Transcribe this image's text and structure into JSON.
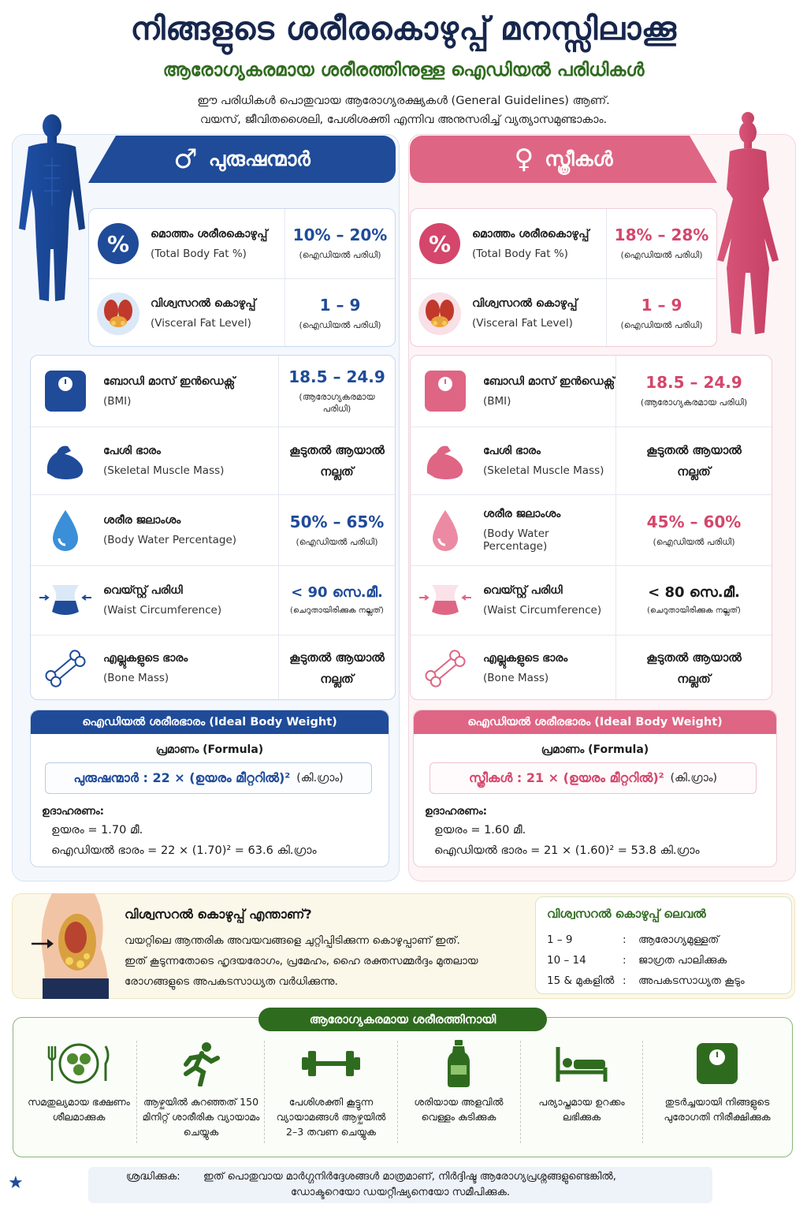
{
  "header": {
    "title": "നിങ്ങളുടെ ശരീരകൊഴുപ്പ് മനസ്സിലാക്കൂ",
    "subtitle": "ആരോഗ്യകരമായ ശരീരത്തിനുള്ള ഐഡിയൽ പരിധികൾ",
    "intro_line1": "ഈ പരിധികൾ പൊതുവായ ആരോഗ്യരക്ഷ്യകൾ (General Guidelines) ആണ്.",
    "intro_line2": "വയസ്, ജീവിതശൈലി, പേശിശക്തി എന്നിവ അനുസരിച്ച് വ്യത്യാസമുണ്ടാകാം."
  },
  "colors": {
    "male": "#1f4b99",
    "female": "#df6584",
    "green": "#2f6b1f"
  },
  "men": {
    "symbol": "♂",
    "title": "പുരുഷന്മാർ",
    "top_metrics": [
      {
        "icon": "percent-icon",
        "ml": "മൊത്തം ശരീരകൊഴുപ്പ്",
        "en": "(Total Body Fat %)",
        "value": "10% – 20%",
        "note": "(ഐഡിയൽ പരിധി)"
      },
      {
        "icon": "organs-icon",
        "ml": "വിശ്വസറൽ കൊഴുപ്പ്",
        "en": "(Visceral Fat Level)",
        "value": "1 – 9",
        "note": "(ഐഡിയൽ പരിധി)"
      }
    ],
    "metrics": [
      {
        "icon": "scale-icon",
        "ml": "ബോഡി മാസ് ഇൻഡെക്സ്",
        "en": "(BMI)",
        "value": "18.5 – 24.9",
        "note": "(ആരോഗ്യകരമായ പരിധി)"
      },
      {
        "icon": "muscle-icon",
        "ml": "പേശി ഭാരം",
        "en": "(Skeletal Muscle Mass)",
        "value": "കൂടുതൽ ആയാൽ നല്ലത്",
        "note": ""
      },
      {
        "icon": "water-drop-icon",
        "ml": "ശരീര ജലാംശം",
        "en": "(Body Water Percentage)",
        "value": "50% – 65%",
        "note": "(ഐഡിയൽ പരിധി)"
      },
      {
        "icon": "waist-icon",
        "ml": "വെയ്സ്റ്റ് പരിധി",
        "en": "(Waist Circumference)",
        "value": "< 90 സെ.മീ.",
        "note": "(ചെറുതായിരിക്കുക നല്ലത്)"
      },
      {
        "icon": "bone-icon",
        "ml": "എല്ലുകളുടെ ഭാരം",
        "en": "(Bone Mass)",
        "value": "കൂടുതൽ ആയാൽ നല്ലത്",
        "note": ""
      }
    ],
    "ideal": {
      "head": "ഐഡിയൽ ശരീരഭാരം (Ideal Body Weight)",
      "formula_label": "പ്രമാണം (Formula)",
      "formula": "പുരുഷന്മാർ : 22 × (ഉയരം മീറ്ററിൽ)²",
      "formula_unit": "(കി.ഗ്രാം)",
      "example_label": "ഉദാഹരണം:",
      "height": "ഉയരം = 1.70 മീ.",
      "calc": "ഐഡിയൽ ഭാരം = 22 × (1.70)² = 63.6 കി.ഗ്രാം"
    }
  },
  "women": {
    "symbol": "♀",
    "title": "സ്ത്രീകൾ",
    "top_metrics": [
      {
        "icon": "percent-icon",
        "ml": "മൊത്തം ശരീരകൊഴുപ്പ്",
        "en": "(Total Body Fat %)",
        "value": "18% – 28%",
        "note": "(ഐഡിയൽ പരിധി)"
      },
      {
        "icon": "organs-icon",
        "ml": "വിശ്വസറൽ കൊഴുപ്പ്",
        "en": "(Visceral Fat Level)",
        "value": "1 – 9",
        "note": "(ഐഡിയൽ പരിധി)"
      }
    ],
    "metrics": [
      {
        "icon": "scale-icon",
        "ml": "ബോഡി മാസ് ഇൻഡെക്സ്",
        "en": "(BMI)",
        "value": "18.5 – 24.9",
        "note": "(ആരോഗ്യകരമായ പരിധി)"
      },
      {
        "icon": "muscle-icon",
        "ml": "പേശി ഭാരം",
        "en": "(Skeletal Muscle Mass)",
        "value": "കൂടുതൽ ആയാൽ നല്ലത്",
        "note": ""
      },
      {
        "icon": "water-drop-icon",
        "ml": "ശരീര ജലാംശം",
        "en": "(Body Water Percentage)",
        "value": "45% – 60%",
        "note": "(ഐഡിയൽ പരിധി)"
      },
      {
        "icon": "waist-icon",
        "ml": "വെയ്സ്റ്റ് പരിധി",
        "en": "(Waist Circumference)",
        "value": "< 80 സെ.മീ.",
        "note": "(ചെറുതായിരിക്കുക നല്ലത്)"
      },
      {
        "icon": "bone-icon",
        "ml": "എല്ലുകളുടെ ഭാരം",
        "en": "(Bone Mass)",
        "value": "കൂടുതൽ ആയാൽ നല്ലത്",
        "note": ""
      }
    ],
    "ideal": {
      "head": "ഐഡിയൽ ശരീരഭാരം (Ideal Body Weight)",
      "formula_label": "പ്രമാണം (Formula)",
      "formula": "സ്ത്രീകൾ : 21 × (ഉയരം മീറ്ററിൽ)²",
      "formula_unit": "(കി.ഗ്രാം)",
      "example_label": "ഉദാഹരണം:",
      "height": "ഉയരം = 1.60 മീ.",
      "calc": "ഐഡിയൽ ഭാരം = 21 × (1.60)² = 53.8 കി.ഗ്രാം"
    }
  },
  "visceral": {
    "title": "വിശ്വസറൽ കൊഴുപ്പ് എന്താണ്?",
    "line1": "വയറ്റിലെ ആന്തരിക അവയവങ്ങളെ ചുറ്റിപ്പിടിക്കുന്ന കൊഴുപ്പാണ് ഇത്.",
    "line2": "ഇത് കൂടുന്നതോടെ ഹൃദയരോഗം, പ്രമേഹം, ഹൈ രക്തസമ്മർദ്ദം മുതലായ",
    "line3": "രോഗങ്ങളുടെ അപകടസാധ്യത വർധിക്കുന്നു.",
    "level_title": "വിശ്വസറൽ കൊഴുപ്പ് ലെവൽ",
    "levels": [
      {
        "range": "1 – 9",
        "text": "ആരോഗ്യമുള്ളത്"
      },
      {
        "range": "10 – 14",
        "text": "ജാഗ്രത പാലിക്കുക"
      },
      {
        "range": "15 & മുകളിൽ",
        "text": "അപകടസാധ്യത കൂടും"
      }
    ]
  },
  "tips": {
    "title": "ആരോഗ്യകരമായ ശരീരത്തിനായി",
    "items": [
      {
        "icon": "plate-icon",
        "text": "സമതുല്യമായ ഭക്ഷണം ശീലമാക്കുക"
      },
      {
        "icon": "runner-icon",
        "text": "ആഴ്ചയിൽ കുറഞ്ഞത് 150 മിനിറ്റ് ശാരീരിക വ്യായാമം ചെയ്യുക"
      },
      {
        "icon": "dumbbell-icon",
        "text": "പേശിശക്തി കൂട്ടുന്ന വ്യായാമങ്ങൾ ആഴ്ചയിൽ 2–3 തവണ ചെയ്യുക"
      },
      {
        "icon": "bottle-icon",
        "text": "ശരിയായ അളവിൽ വെള്ളം കുടിക്കുക"
      },
      {
        "icon": "bed-icon",
        "text": "പര്യാപ്തമായ ഉറക്കം ലഭിക്കുക"
      },
      {
        "icon": "scale-icon",
        "text": "തുടർച്ചയായി നിങ്ങളുടെ പുരോഗതി നിരീക്ഷിക്കുക"
      }
    ]
  },
  "note": {
    "label": "ശ്രദ്ധിക്കുക:",
    "line1": "ഇത് പൊതുവായ മാർഗ്ഗനിർദ്ദേശങ്ങൾ മാത്രമാണ്, നിർദ്ദിഷ്ട ആരോഗ്യപ്രശ്നങ്ങളുണ്ടെങ്കിൽ,",
    "line2": "ഡോക്ടറെയോ ഡയറ്റീഷ്യനെയോ സമീപിക്കുക."
  }
}
